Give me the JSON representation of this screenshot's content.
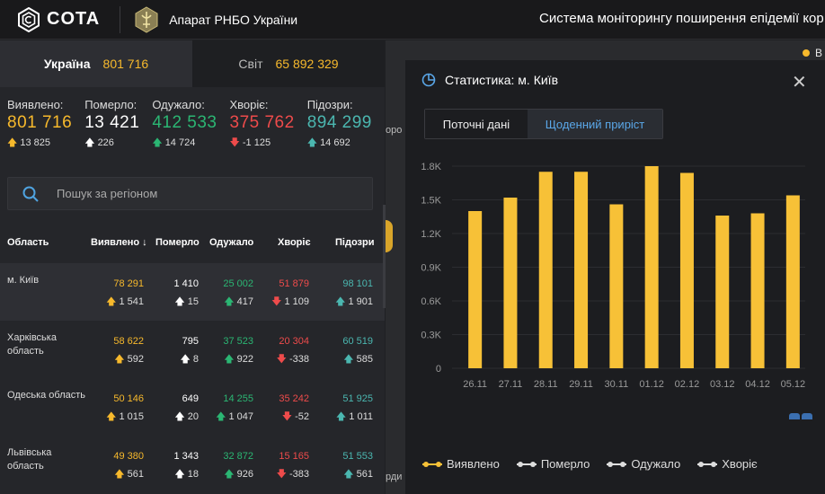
{
  "header": {
    "logo_text": "COTA",
    "org_name": "Апарат РНБО України",
    "system_title": "Система моніторингу поширення епідемії кор"
  },
  "tabs": [
    {
      "label": "Україна",
      "value": "801 716"
    },
    {
      "label": "Світ",
      "value": "65 892 329"
    }
  ],
  "summary": [
    {
      "label": "Виявлено:",
      "value": "801 716",
      "delta": "13 825",
      "color": "#f7b92c",
      "dir": "up"
    },
    {
      "label": "Померло:",
      "value": "13 421",
      "delta": "226",
      "color": "#ffffff",
      "dir": "up"
    },
    {
      "label": "Одужало:",
      "value": "412 533",
      "delta": "14 724",
      "color": "#2bb673",
      "dir": "up"
    },
    {
      "label": "Хворіє:",
      "value": "375 762",
      "delta": "-1 125",
      "color": "#ee4b4b",
      "dir": "down"
    },
    {
      "label": "Підозри:",
      "value": "894 299",
      "delta": "14 692",
      "color": "#4bb7b0",
      "dir": "up"
    }
  ],
  "search": {
    "placeholder": "Пошук за регіоном"
  },
  "table": {
    "headers": [
      "Область",
      "Виявлено",
      "Померло",
      "Одужало",
      "Хворіє",
      "Підозри"
    ],
    "rows": [
      {
        "name": "м. Київ",
        "cases": "78 291",
        "cases_d": "1 541",
        "deaths": "1 410",
        "deaths_d": "15",
        "rec": "25 002",
        "rec_d": "417",
        "sick": "51 879",
        "sick_d": "1 109",
        "susp": "98 101",
        "susp_d": "1 901"
      },
      {
        "name": "Харківська область",
        "cases": "58 622",
        "cases_d": "592",
        "deaths": "795",
        "deaths_d": "8",
        "rec": "37 523",
        "rec_d": "922",
        "sick": "20 304",
        "sick_d": "-338",
        "susp": "60 519",
        "susp_d": "585"
      },
      {
        "name": "Одеська область",
        "cases": "50 146",
        "cases_d": "1 015",
        "deaths": "649",
        "deaths_d": "20",
        "rec": "14 255",
        "rec_d": "1 047",
        "sick": "35 242",
        "sick_d": "-52",
        "susp": "51 925",
        "susp_d": "1 011"
      },
      {
        "name": "Львівська область",
        "cases": "49 380",
        "cases_d": "561",
        "deaths": "1 343",
        "deaths_d": "18",
        "rec": "32 872",
        "rec_d": "926",
        "sick": "15 165",
        "sick_d": "-383",
        "susp": "51 553",
        "susp_d": "561"
      }
    ]
  },
  "panel": {
    "title": "Статистика: м. Київ",
    "tab_current": "Поточні дані",
    "tab_daily": "Щоденний приріст",
    "legend": [
      "Виявлено",
      "Померло",
      "Одужало",
      "Хворіє"
    ]
  },
  "map_fragments": [
    "оро",
    "рди"
  ],
  "topright_letter": "В",
  "chart_data": {
    "type": "bar",
    "categories": [
      "26.11",
      "27.11",
      "28.11",
      "29.11",
      "30.11",
      "01.12",
      "02.12",
      "03.12",
      "04.12",
      "05.12"
    ],
    "series": [
      {
        "name": "Виявлено",
        "values": [
          1400,
          1520,
          1750,
          1750,
          1460,
          1800,
          1740,
          1360,
          1380,
          1540
        ],
        "color": "#f7c137"
      }
    ],
    "yticks": [
      "0",
      "0.3K",
      "0.6K",
      "0.9K",
      "1.2K",
      "1.5K",
      "1.8K"
    ],
    "ylim": [
      0,
      1800
    ]
  },
  "colors": {
    "accent": "#f7b92c",
    "green": "#2bb673",
    "red": "#ee4b4b",
    "teal": "#4bb7b0",
    "blue": "#5aa7e8"
  }
}
